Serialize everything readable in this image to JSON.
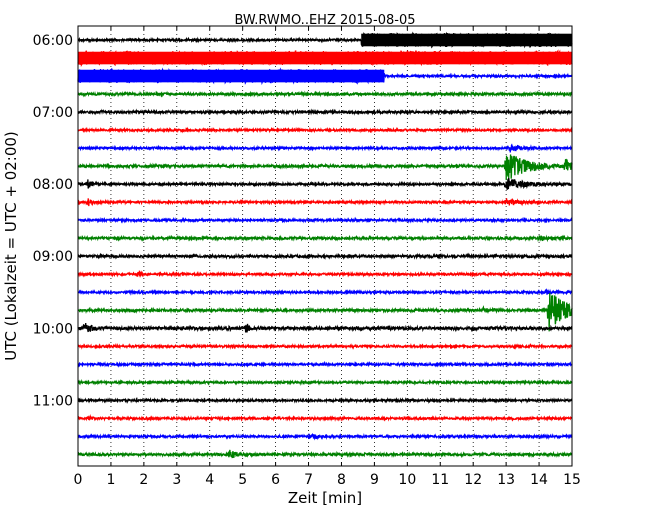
{
  "chart_data": {
    "type": "line",
    "title": "BW.RWMO..EHZ 2015-08-05",
    "xlabel": "Zeit  [min]",
    "ylabel": "UTC (Lokalzeit = UTC + 02:00)",
    "xlim": [
      0,
      15
    ],
    "x_ticks": [
      "0",
      "1",
      "2",
      "3",
      "4",
      "5",
      "6",
      "7",
      "8",
      "9",
      "10",
      "11",
      "12",
      "13",
      "14",
      "15"
    ],
    "y_ticks": [
      {
        "label": "06:00",
        "trace": 0
      },
      {
        "label": "07:00",
        "trace": 4
      },
      {
        "label": "08:00",
        "trace": 8
      },
      {
        "label": "09:00",
        "trace": 12
      },
      {
        "label": "10:00",
        "trace": 16
      },
      {
        "label": "11:00",
        "trace": 20
      }
    ],
    "grid": "vertical dotted at each minute",
    "trace_interval_min": 15,
    "colors": [
      "#000000",
      "#ff0000",
      "#0000ff",
      "#008000"
    ],
    "traces": [
      {
        "start": "06:00",
        "color": "#000000",
        "noise": 1.0,
        "band": [
          8.6,
          15,
          7
        ],
        "events": []
      },
      {
        "start": "06:15",
        "color": "#ff0000",
        "noise": 1.0,
        "band": [
          0,
          15,
          7
        ],
        "events": []
      },
      {
        "start": "06:30",
        "color": "#0000ff",
        "noise": 1.0,
        "band": [
          0,
          9.3,
          7
        ],
        "events": []
      },
      {
        "start": "06:45",
        "color": "#008000",
        "noise": 1.2,
        "events": []
      },
      {
        "start": "07:00",
        "color": "#000000",
        "noise": 1.2,
        "events": []
      },
      {
        "start": "07:15",
        "color": "#ff0000",
        "noise": 1.0,
        "events": []
      },
      {
        "start": "07:30",
        "color": "#0000ff",
        "noise": 1.0,
        "events": [
          {
            "t": 13.1,
            "a": 4,
            "w": 0.3
          }
        ]
      },
      {
        "start": "07:45",
        "color": "#008000",
        "noise": 1.2,
        "events": [
          {
            "t": 13.0,
            "a": 15,
            "w": 0.6
          },
          {
            "t": 14.8,
            "a": 6,
            "w": 0.15
          }
        ]
      },
      {
        "start": "08:00",
        "color": "#000000",
        "noise": 1.0,
        "events": [
          {
            "t": 0.3,
            "a": 4,
            "w": 0.1
          },
          {
            "t": 13.0,
            "a": 6,
            "w": 0.5
          }
        ]
      },
      {
        "start": "08:15",
        "color": "#ff0000",
        "noise": 1.0,
        "events": [
          {
            "t": 0.3,
            "a": 4,
            "w": 0.1
          },
          {
            "t": 13.0,
            "a": 3,
            "w": 0.4
          }
        ]
      },
      {
        "start": "08:30",
        "color": "#0000ff",
        "noise": 1.0,
        "events": []
      },
      {
        "start": "08:45",
        "color": "#008000",
        "noise": 1.2,
        "events": [
          {
            "t": 14.0,
            "a": 2,
            "w": 0.2
          }
        ]
      },
      {
        "start": "09:00",
        "color": "#000000",
        "noise": 1.2,
        "events": []
      },
      {
        "start": "09:15",
        "color": "#ff0000",
        "noise": 1.0,
        "events": [
          {
            "t": 1.85,
            "a": 4,
            "w": 0.08
          }
        ]
      },
      {
        "start": "09:30",
        "color": "#0000ff",
        "noise": 1.0,
        "events": [
          {
            "t": 14.2,
            "a": 2,
            "w": 0.2
          }
        ]
      },
      {
        "start": "09:45",
        "color": "#008000",
        "noise": 1.2,
        "events": [
          {
            "t": 14.3,
            "a": 22,
            "w": 0.45
          },
          {
            "t": 12.3,
            "a": 2,
            "w": 0.2
          }
        ]
      },
      {
        "start": "10:00",
        "color": "#000000",
        "noise": 1.5,
        "events": [
          {
            "t": 0.2,
            "a": 6,
            "w": 0.15
          },
          {
            "t": 5.1,
            "a": 7,
            "w": 0.06
          }
        ]
      },
      {
        "start": "10:15",
        "color": "#ff0000",
        "noise": 1.0,
        "events": []
      },
      {
        "start": "10:30",
        "color": "#0000ff",
        "noise": 1.0,
        "events": []
      },
      {
        "start": "10:45",
        "color": "#008000",
        "noise": 1.0,
        "events": []
      },
      {
        "start": "11:00",
        "color": "#000000",
        "noise": 1.0,
        "events": []
      },
      {
        "start": "11:15",
        "color": "#ff0000",
        "noise": 1.0,
        "events": [
          {
            "t": 0.3,
            "a": 2,
            "w": 0.1
          }
        ]
      },
      {
        "start": "11:30",
        "color": "#0000ff",
        "noise": 1.0,
        "events": [
          {
            "t": 7.0,
            "a": 2,
            "w": 0.3
          }
        ]
      },
      {
        "start": "11:45",
        "color": "#008000",
        "noise": 1.2,
        "events": [
          {
            "t": 4.6,
            "a": 4,
            "w": 0.2
          }
        ]
      }
    ]
  }
}
